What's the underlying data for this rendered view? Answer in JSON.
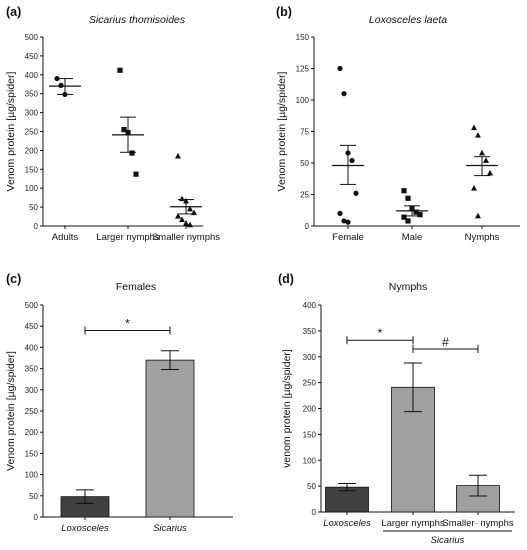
{
  "chart_data": [
    {
      "id": "a",
      "type": "scatter",
      "panel_label": "(a)",
      "title": "Sicarius thomisoides",
      "title_italic": true,
      "ylabel": "Venom protein [µg/spider]",
      "ylim": [
        0,
        500
      ],
      "yticks": [
        "0",
        "50",
        "100",
        "150",
        "200",
        "250",
        "300",
        "350",
        "400",
        "450",
        "500"
      ],
      "categories": [
        "Adults",
        "Larger nymphs",
        "Smaller nymphs"
      ],
      "marker": "circle|square|triangle",
      "groups": [
        {
          "name": "Adults",
          "marker": "circle",
          "points": [
            390,
            372,
            348
          ],
          "mean": 370,
          "sem_low": 348,
          "sem_high": 390
        },
        {
          "name": "Larger nymphs",
          "marker": "square",
          "points": [
            412,
            255,
            247,
            193,
            137
          ],
          "mean": 241,
          "sem_low": 195,
          "sem_high": 288
        },
        {
          "name": "Smaller nymphs",
          "marker": "triangle",
          "points": [
            185,
            72,
            66,
            45,
            35,
            26,
            17,
            7,
            3
          ],
          "mean": 51,
          "sem_low": 32,
          "sem_high": 70
        }
      ]
    },
    {
      "id": "b",
      "type": "scatter",
      "panel_label": "(b)",
      "title": "Loxosceles laeta",
      "title_italic": true,
      "ylabel": "Venom protein [µg/spider]",
      "ylim": [
        0,
        150
      ],
      "yticks": [
        "0",
        "25",
        "50",
        "75",
        "100",
        "125",
        "150"
      ],
      "categories": [
        "Female",
        "Male",
        "Nymphs"
      ],
      "groups": [
        {
          "name": "Female",
          "marker": "circle",
          "points": [
            125,
            105,
            58,
            52,
            26,
            10,
            4,
            3
          ],
          "mean": 48,
          "sem_low": 33,
          "sem_high": 64
        },
        {
          "name": "Male",
          "marker": "square",
          "points": [
            28,
            22,
            14,
            11,
            9,
            7,
            4
          ],
          "mean": 12,
          "sem_low": 8,
          "sem_high": 16
        },
        {
          "name": "Nymphs",
          "marker": "triangle",
          "points": [
            78,
            72,
            58,
            52,
            42,
            30,
            8
          ],
          "mean": 48,
          "sem_low": 40,
          "sem_high": 55
        }
      ]
    },
    {
      "id": "c",
      "type": "bar",
      "panel_label": "(c)",
      "title": "Females",
      "ylabel": "Venom protein [µg/spider]",
      "ylim": [
        0,
        500
      ],
      "yticks": [
        "0",
        "50",
        "100",
        "150",
        "200",
        "250",
        "300",
        "350",
        "400",
        "450",
        "500"
      ],
      "categories": [
        "Loxosceles",
        "Sicarius"
      ],
      "category_italic": true,
      "values": [
        48,
        370
      ],
      "errors": [
        16,
        22
      ],
      "colors": [
        "#404040",
        "#a0a0a0"
      ],
      "significance": [
        {
          "from": 0,
          "to": 1,
          "symbol": "*",
          "y": 440
        }
      ]
    },
    {
      "id": "d",
      "type": "bar",
      "panel_label": "(d)",
      "title": "Nymphs",
      "ylabel": "venom protein [µg/spider]",
      "ylim": [
        0,
        400
      ],
      "yticks": [
        "0",
        "50",
        "100",
        "150",
        "200",
        "250",
        "300",
        "350",
        "400"
      ],
      "categories": [
        "Loxosceles",
        "Larger nymphs",
        "Smaller· nymphs"
      ],
      "group_label": "Sicarius",
      "values": [
        48,
        241,
        51
      ],
      "errors": [
        7,
        47,
        20
      ],
      "colors": [
        "#404040",
        "#a0a0a0",
        "#a0a0a0"
      ],
      "significance": [
        {
          "from": 0,
          "to": 1,
          "symbol": "*",
          "y": 332
        },
        {
          "from": 1,
          "to": 2,
          "symbol": "#",
          "y": 315
        }
      ]
    }
  ]
}
